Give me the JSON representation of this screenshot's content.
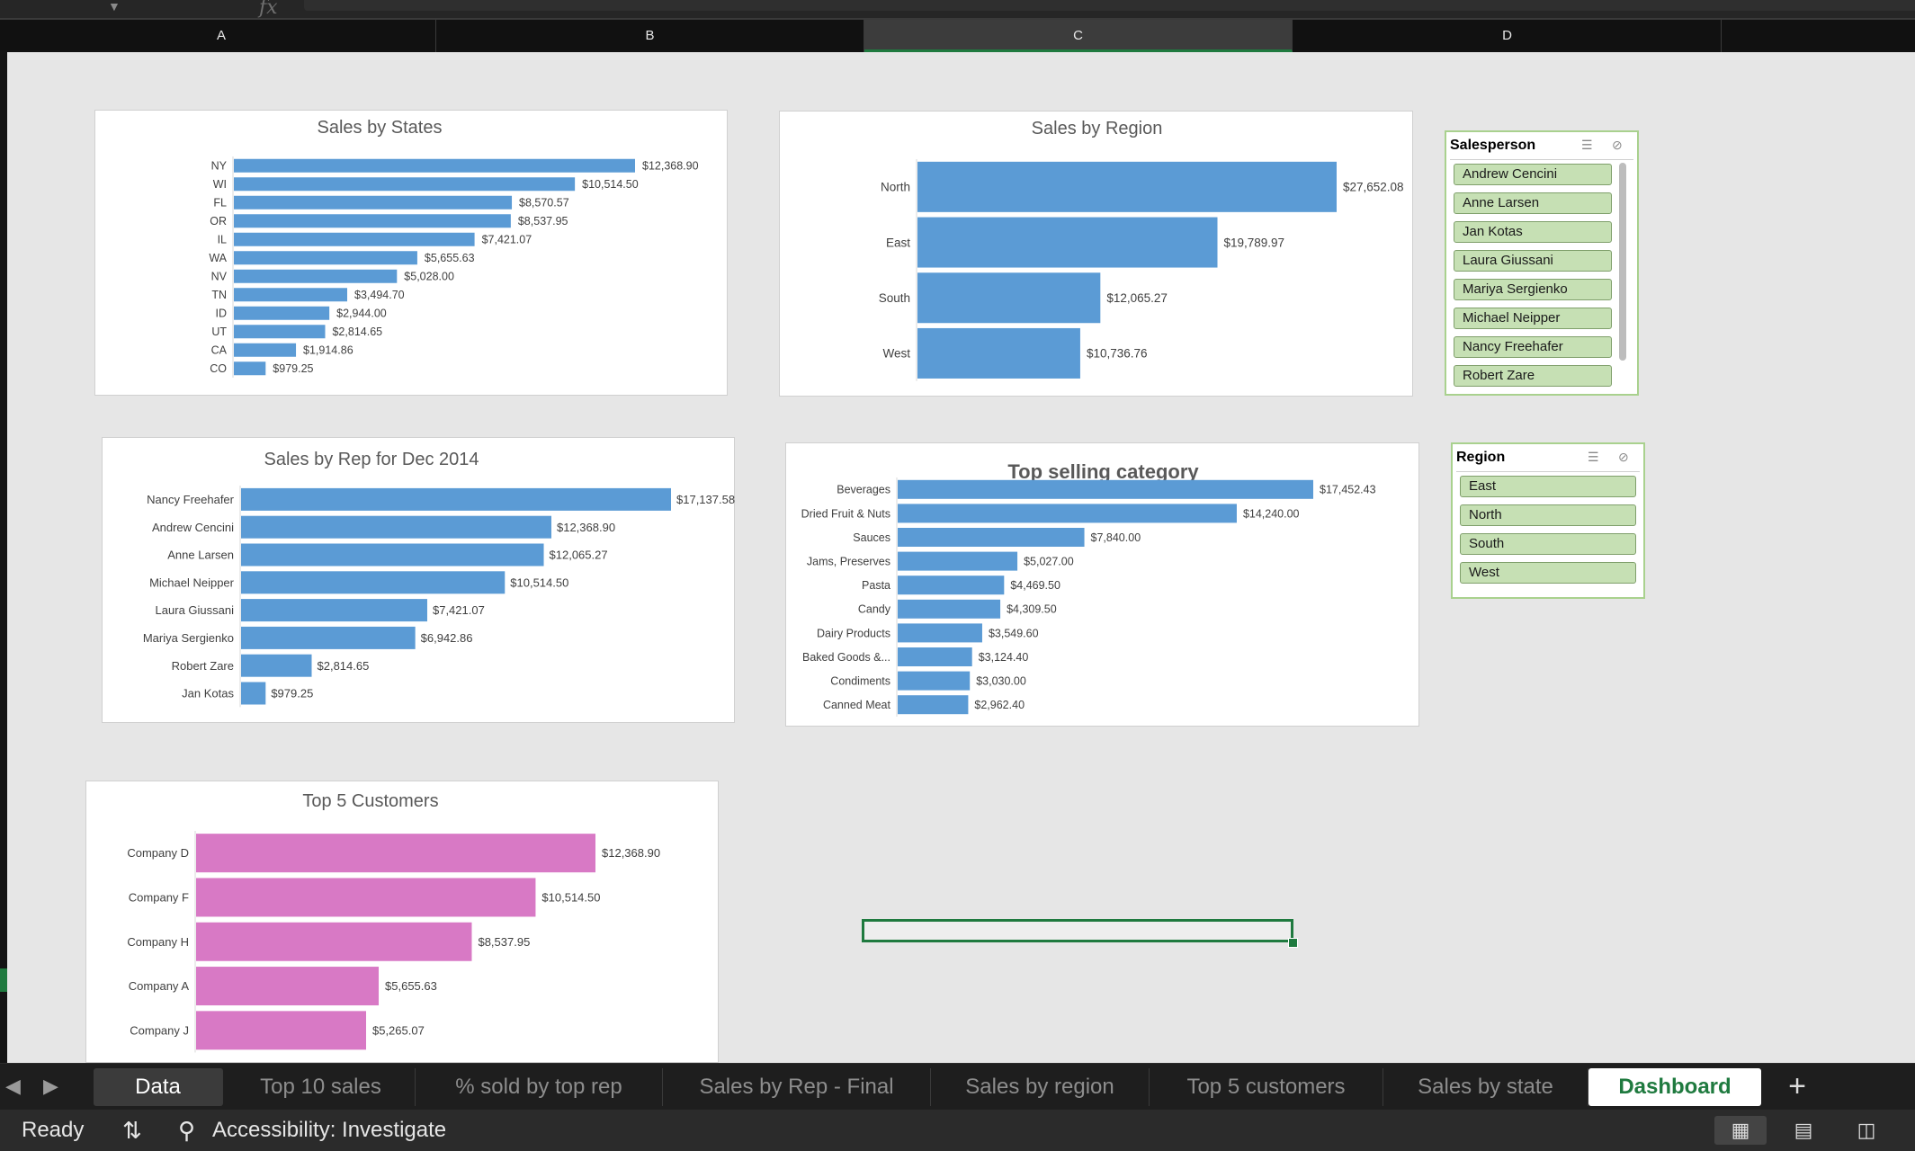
{
  "formula_bar": {
    "fx_label": "fx"
  },
  "columns": [
    "A",
    "B",
    "C",
    "D"
  ],
  "charts": [
    {
      "id": "states",
      "title": "Sales by States",
      "categories": [
        "NY",
        "WI",
        "FL",
        "OR",
        "IL",
        "WA",
        "NV",
        "TN",
        "ID",
        "UT",
        "CA",
        "CO"
      ],
      "values": [
        12368.9,
        10514.5,
        8570.57,
        8537.95,
        7421.07,
        5655.63,
        5028.0,
        3494.7,
        2944.0,
        2814.65,
        1914.86,
        979.25
      ],
      "labels": [
        "$12,368.90",
        "$10,514.50",
        "$8,570.57",
        "$8,537.95",
        "$7,421.07",
        "$5,655.63",
        "$5,028.00",
        "$3,494.70",
        "$2,944.00",
        "$2,814.65",
        "$1,914.86",
        "$979.25"
      ],
      "color": "#5b9bd5"
    },
    {
      "id": "region",
      "title": "Sales by Region",
      "categories": [
        "North",
        "East",
        "South",
        "West"
      ],
      "values": [
        27652.08,
        19789.97,
        12065.27,
        10736.76
      ],
      "labels": [
        "$27,652.08",
        "$19,789.97",
        "$12,065.27",
        "$10,736.76"
      ],
      "color": "#5b9bd5"
    },
    {
      "id": "rep",
      "title": "Sales by Rep for Dec 2014",
      "categories": [
        "Nancy Freehafer",
        "Andrew Cencini",
        "Anne Larsen",
        "Michael Neipper",
        "Laura Giussani",
        "Mariya Sergienko",
        "Robert Zare",
        "Jan Kotas"
      ],
      "values": [
        17137.58,
        12368.9,
        12065.27,
        10514.5,
        7421.07,
        6942.86,
        2814.65,
        979.25
      ],
      "labels": [
        "$17,137.58",
        "$12,368.90",
        "$12,065.27",
        "$10,514.50",
        "$7,421.07",
        "$6,942.86",
        "$2,814.65",
        "$979.25"
      ],
      "color": "#5b9bd5"
    },
    {
      "id": "category",
      "title": "Top selling category",
      "categories": [
        "Beverages",
        "Dried Fruit & Nuts",
        "Sauces",
        "Jams, Preserves",
        "Pasta",
        "Candy",
        "Dairy Products",
        "Baked Goods &...",
        "Condiments",
        "Canned Meat"
      ],
      "values": [
        17452.43,
        14240.0,
        7840.0,
        5027.0,
        4469.5,
        4309.5,
        3549.6,
        3124.4,
        3030.0,
        2962.4
      ],
      "labels": [
        "$17,452.43",
        "$14,240.00",
        "$7,840.00",
        "$5,027.00",
        "$4,469.50",
        "$4,309.50",
        "$3,549.60",
        "$3,124.40",
        "$3,030.00",
        "$2,962.40"
      ],
      "color": "#5b9bd5"
    },
    {
      "id": "customers",
      "title": "Top 5 Customers",
      "categories": [
        "Company D",
        "Company F",
        "Company H",
        "Company A",
        "Company J"
      ],
      "values": [
        12368.9,
        10514.5,
        8537.95,
        5655.63,
        5265.07
      ],
      "labels": [
        "$12,368.90",
        "$10,514.50",
        "$8,537.95",
        "$5,655.63",
        "$5,265.07"
      ],
      "color": "#d879c5"
    }
  ],
  "chart_data": [
    {
      "type": "bar",
      "title": "Sales by States",
      "categories": [
        "NY",
        "WI",
        "FL",
        "OR",
        "IL",
        "WA",
        "NV",
        "TN",
        "ID",
        "UT",
        "CA",
        "CO"
      ],
      "values": [
        12368.9,
        10514.5,
        8570.57,
        8537.95,
        7421.07,
        5655.63,
        5028.0,
        3494.7,
        2944.0,
        2814.65,
        1914.86,
        979.25
      ],
      "orientation": "horizontal"
    },
    {
      "type": "bar",
      "title": "Sales by Region",
      "categories": [
        "North",
        "East",
        "South",
        "West"
      ],
      "values": [
        27652.08,
        19789.97,
        12065.27,
        10736.76
      ],
      "orientation": "horizontal"
    },
    {
      "type": "bar",
      "title": "Sales by Rep for Dec 2014",
      "categories": [
        "Nancy Freehafer",
        "Andrew Cencini",
        "Anne Larsen",
        "Michael Neipper",
        "Laura Giussani",
        "Mariya Sergienko",
        "Robert Zare",
        "Jan Kotas"
      ],
      "values": [
        17137.58,
        12368.9,
        12065.27,
        10514.5,
        7421.07,
        6942.86,
        2814.65,
        979.25
      ],
      "orientation": "horizontal"
    },
    {
      "type": "bar",
      "title": "Top selling category",
      "categories": [
        "Beverages",
        "Dried Fruit & Nuts",
        "Sauces",
        "Jams, Preserves",
        "Pasta",
        "Candy",
        "Dairy Products",
        "Baked Goods &...",
        "Condiments",
        "Canned Meat"
      ],
      "values": [
        17452.43,
        14240.0,
        7840.0,
        5027.0,
        4469.5,
        4309.5,
        3549.6,
        3124.4,
        3030.0,
        2962.4
      ],
      "orientation": "horizontal"
    },
    {
      "type": "bar",
      "title": "Top 5 Customers",
      "categories": [
        "Company D",
        "Company F",
        "Company H",
        "Company A",
        "Company J"
      ],
      "values": [
        12368.9,
        10514.5,
        8537.95,
        5655.63,
        5265.07
      ],
      "orientation": "horizontal"
    }
  ],
  "slicers": {
    "salesperson": {
      "title": "Salesperson",
      "items": [
        "Andrew Cencini",
        "Anne Larsen",
        "Jan Kotas",
        "Laura Giussani",
        "Mariya Sergienko",
        "Michael Neipper",
        "Nancy Freehafer",
        "Robert Zare"
      ]
    },
    "region": {
      "title": "Region",
      "items": [
        "East",
        "North",
        "South",
        "West"
      ]
    }
  },
  "sheet_tabs": [
    "Data",
    "Top 10 sales",
    "% sold by top rep",
    "Sales by Rep - Final",
    "Sales by region",
    "Top 5 customers",
    "Sales by state",
    "Dashboard"
  ],
  "active_tab": "Dashboard",
  "status": {
    "ready": "Ready",
    "accessibility": "Accessibility: Investigate"
  }
}
